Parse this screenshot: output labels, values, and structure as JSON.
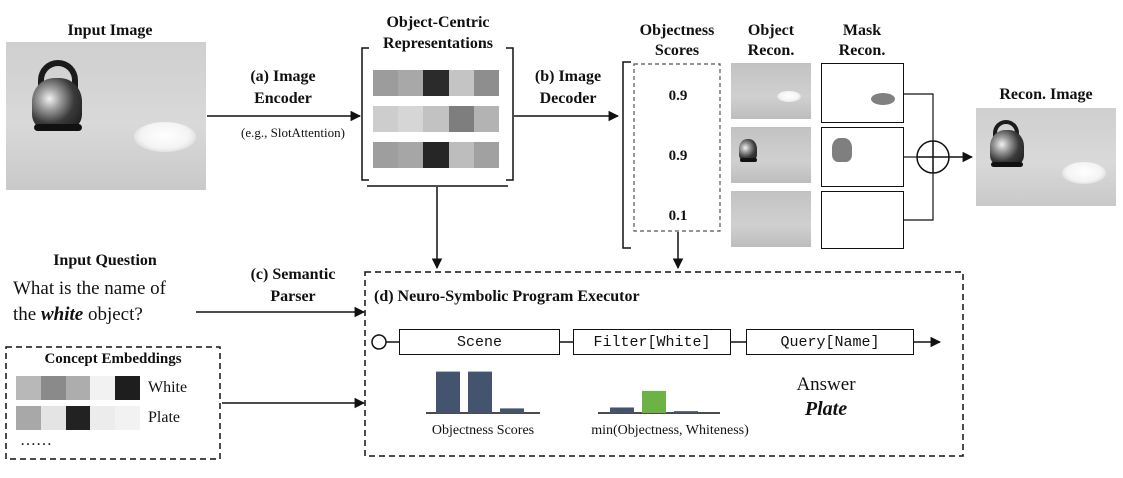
{
  "input_image": {
    "label": "Input Image"
  },
  "image_encoder": {
    "label_line1": "(a) Image",
    "label_line2": "Encoder",
    "example": "(e.g., SlotAttention)"
  },
  "object_centric": {
    "label_line1": "Object-Centric",
    "label_line2": "Representations"
  },
  "image_decoder": {
    "label_line1": "(b) Image",
    "label_line2": "Decoder"
  },
  "objectness": {
    "label_line1": "Objectness",
    "label_line2": "Scores",
    "scores": [
      "0.9",
      "0.9",
      "0.1"
    ]
  },
  "object_recon": {
    "label_line1": "Object",
    "label_line2": "Recon."
  },
  "mask_recon": {
    "label_line1": "Mask",
    "label_line2": "Recon."
  },
  "recon_image": {
    "label": "Recon. Image"
  },
  "input_question": {
    "label": "Input Question",
    "line1": "What is the name of",
    "line2_pre": "the ",
    "line2_emph": "white",
    "line2_post": " object?"
  },
  "semantic_parser": {
    "label_line1": "(c) Semantic",
    "label_line2": "Parser"
  },
  "concept_embeddings": {
    "title": "Concept Embeddings",
    "items": [
      "White",
      "Plate"
    ],
    "more": "……"
  },
  "executor": {
    "title": "(d) Neuro-Symbolic Program Executor",
    "program": [
      "Scene",
      "Filter[White]",
      "Query[Name]"
    ],
    "answer_label": "Answer",
    "answer_value": "Plate"
  },
  "bar_charts": [
    {
      "caption": "Objectness Scores",
      "values": [
        0.9,
        0.9,
        0.1
      ],
      "colors": [
        "#44546f",
        "#44546f",
        "#44546f"
      ]
    },
    {
      "caption": "min(Objectness, Whiteness)",
      "values": [
        0.12,
        0.48,
        0.04
      ],
      "colors": [
        "#44546f",
        "#6cb244",
        "#44546f"
      ]
    }
  ],
  "colors": {
    "bar_dark": "#44546f",
    "bar_green": "#6cb244"
  }
}
